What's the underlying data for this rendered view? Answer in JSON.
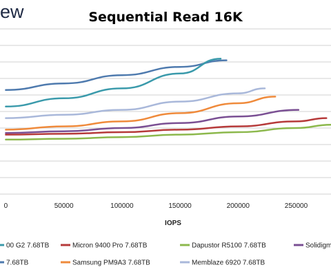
{
  "brand": "ew",
  "chart_data": {
    "type": "line",
    "title": "Sequential Read 16K",
    "xlabel": "IOPS",
    "ylabel": "",
    "xlim": [
      -5000,
      280000
    ],
    "ylim": [
      0,
      1.0
    ],
    "grid": true,
    "x_ticks": [
      0,
      50000,
      100000,
      150000,
      200000,
      250000
    ],
    "x_tick_labels": [
      "0",
      "50000",
      "100000",
      "150000",
      "200000",
      "250000"
    ],
    "legend_position": "bottom",
    "series": [
      {
        "name": "Solidigm",
        "color": "#4e7aae",
        "x": [
          0,
          50000,
          100000,
          150000,
          190000
        ],
        "y": [
          0.63,
          0.67,
          0.72,
          0.77,
          0.81
        ]
      },
      {
        "name": "",
        "color": "#3a9aab",
        "x": [
          0,
          50000,
          100000,
          150000,
          185000
        ],
        "y": [
          0.53,
          0.58,
          0.64,
          0.73,
          0.82
        ]
      },
      {
        "name": "Memblaze 6920 7.68TB",
        "color": "#a9b8da",
        "x": [
          0,
          50000,
          100000,
          150000,
          200000,
          223000
        ],
        "y": [
          0.46,
          0.48,
          0.51,
          0.56,
          0.61,
          0.64
        ]
      },
      {
        "name": "Samsung PM9A3 7.68TB",
        "color": "#ef8a3b",
        "x": [
          0,
          50000,
          100000,
          150000,
          200000,
          232000
        ],
        "y": [
          0.39,
          0.41,
          0.44,
          0.49,
          0.55,
          0.59
        ]
      },
      {
        "name": "",
        "color": "#7a4f93",
        "x": [
          0,
          50000,
          100000,
          150000,
          200000,
          252000
        ],
        "y": [
          0.37,
          0.38,
          0.4,
          0.43,
          0.47,
          0.51
        ]
      },
      {
        "name": "Micron 9400 Pro 7.68TB",
        "color": "#b63a3a",
        "x": [
          0,
          50000,
          100000,
          150000,
          200000,
          250000,
          276000
        ],
        "y": [
          0.36,
          0.365,
          0.375,
          0.39,
          0.41,
          0.44,
          0.46
        ]
      },
      {
        "name": "Dapustor R5100 7.68TB",
        "color": "#8cb84c",
        "x": [
          0,
          50000,
          100000,
          150000,
          200000,
          250000,
          280000
        ],
        "y": [
          0.33,
          0.335,
          0.345,
          0.36,
          0.375,
          0.4,
          0.42
        ]
      }
    ]
  },
  "legend": [
    {
      "label": "00 G2 7.68TB",
      "color": "#3a9aab"
    },
    {
      "label": "Micron 9400 Pro 7.68TB",
      "color": "#b63a3a"
    },
    {
      "label": "Dapustor R5100 7.68TB",
      "color": "#8cb84c"
    },
    {
      "label": "Solidigm",
      "color": "#7a4f93"
    },
    {
      "label": "7.68TB",
      "color": "#4e7aae"
    },
    {
      "label": "Samsung PM9A3 7.68TB",
      "color": "#ef8a3b"
    },
    {
      "label": "Memblaze 6920 7.68TB",
      "color": "#a9b8da"
    }
  ]
}
